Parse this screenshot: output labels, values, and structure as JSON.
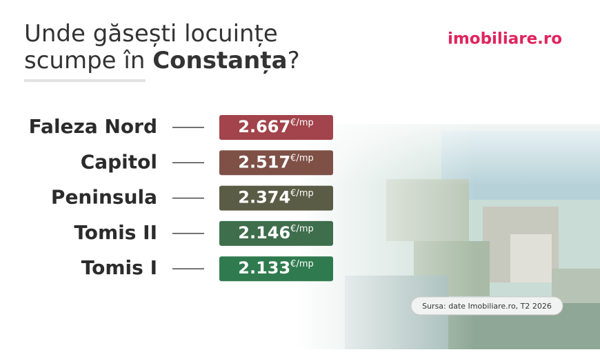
{
  "header": {
    "title_line1": "Unde găsești locuințe",
    "title_line2_prefix": "scumpe în",
    "title_highlight": "Constanța",
    "title_suffix": "?"
  },
  "logo": "imobiliare.ro",
  "rows": [
    {
      "name": "Faleza Nord",
      "price": "2.667",
      "unit": "€/mp",
      "color": "#a3434b"
    },
    {
      "name": "Capitol",
      "price": "2.517",
      "unit": "€/mp",
      "color": "#7f5046"
    },
    {
      "name": "Peninsula",
      "price": "2.374",
      "unit": "€/mp",
      "color": "#5b5c45"
    },
    {
      "name": "Tomis II",
      "price": "2.146",
      "unit": "€/mp",
      "color": "#3e6e4c"
    },
    {
      "name": "Tomis I",
      "price": "2.133",
      "unit": "€/mp",
      "color": "#2f7b4f"
    }
  ],
  "source": "Sursa: date Imobiliare.ro, T2 2026"
}
